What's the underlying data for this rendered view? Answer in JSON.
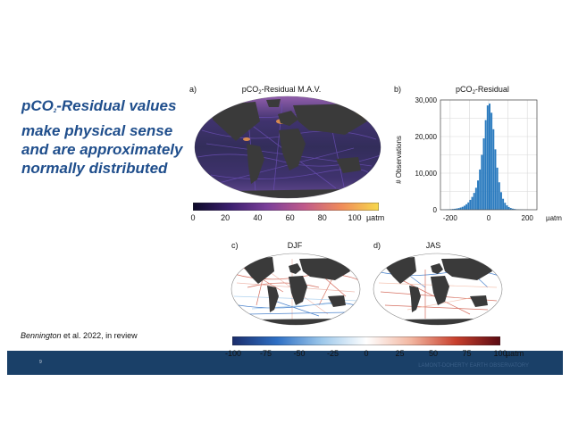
{
  "headline": {
    "line1_prefix": "pCO",
    "line1_sub": "2",
    "line1_suffix": "-Residual values",
    "line2": "make physical sense",
    "line3": "and are approximately",
    "line4": "normally distributed"
  },
  "citation": {
    "author": "Bennington",
    "rest": " et al. 2022, in review"
  },
  "footer": {
    "page_number": "9",
    "faint_text": "LAMONT-DOHERTY EARTH OBSERVATORY"
  },
  "panel_a": {
    "label": "a)",
    "title_prefix": "pCO",
    "title_sub": "2",
    "title_suffix": "-Residual M.A.V.",
    "colorbar_ticks": [
      "0",
      "20",
      "40",
      "60",
      "80",
      "100"
    ],
    "colorbar_unit": "µatm",
    "colormap": [
      "#0d0a29",
      "#3b1f6e",
      "#7b3f9a",
      "#c05a8a",
      "#f08c5a",
      "#f7d94c"
    ]
  },
  "panel_b": {
    "label": "b)",
    "title_prefix": "pCO",
    "title_sub": "2",
    "title_suffix": "-Residual",
    "ylabel": "# Observations",
    "unit": "µatm",
    "bar_color": "#2b7bbf"
  },
  "panel_c": {
    "label": "c)",
    "title": "DJF"
  },
  "panel_d": {
    "label": "d)",
    "title": "JAS"
  },
  "shared_colorbar": {
    "ticks": [
      "-100",
      "-75",
      "-50",
      "-25",
      "0",
      "25",
      "50",
      "75",
      "100"
    ],
    "unit": "µatm",
    "colormap": [
      "#1b2d6b",
      "#2e6fc4",
      "#9cc7ea",
      "#ffffff",
      "#f2b6a0",
      "#c8402d",
      "#5a0a12"
    ]
  },
  "chart_data": {
    "type": "bar",
    "title": "pCO2-Residual",
    "xlabel": "µatm",
    "ylabel": "# Observations",
    "xlim": [
      -250,
      250
    ],
    "ylim": [
      0,
      30000
    ],
    "xticks": [
      "-200",
      "0",
      "200"
    ],
    "yticks": [
      "0",
      "10,000",
      "20,000",
      "30,000"
    ],
    "bin_width": 10,
    "bin_centers": [
      -245,
      -235,
      -225,
      -215,
      -205,
      -195,
      -185,
      -175,
      -165,
      -155,
      -145,
      -135,
      -125,
      -115,
      -105,
      -95,
      -85,
      -75,
      -65,
      -55,
      -45,
      -35,
      -25,
      -15,
      -5,
      5,
      15,
      25,
      35,
      45,
      55,
      65,
      75,
      85,
      95,
      105,
      115,
      125,
      135,
      145,
      155,
      165,
      175,
      185,
      195,
      205,
      215,
      225,
      235,
      245
    ],
    "values": [
      30,
      40,
      60,
      80,
      110,
      150,
      200,
      260,
      340,
      450,
      600,
      800,
      1100,
      1500,
      2000,
      2700,
      3500,
      4600,
      6000,
      8000,
      11000,
      15000,
      19500,
      24500,
      28500,
      29000,
      26500,
      22000,
      16500,
      11500,
      7500,
      4800,
      3000,
      1900,
      1200,
      750,
      480,
      300,
      200,
      130,
      90,
      60,
      40,
      30,
      20,
      15,
      10,
      8,
      5,
      3
    ]
  }
}
